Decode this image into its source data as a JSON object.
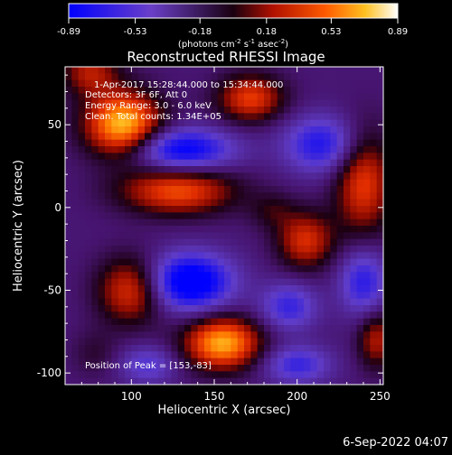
{
  "colorbar": {
    "tick_labels": [
      "-0.89",
      "-0.53",
      "-0.18",
      "0.18",
      "0.53",
      "0.89"
    ],
    "min": -0.89,
    "max": 0.89,
    "units_parts": {
      "a": "(photons cm",
      "b": "-2",
      "c": " s",
      "d": "-1",
      "e": " asec",
      "f": "-2",
      "g": ")"
    }
  },
  "chart_data": {
    "type": "heatmap",
    "title": "Reconstructed RHESSI Image",
    "xlabel": "Heliocentric X (arcsec)",
    "ylabel": "Heliocentric Y (arcsec)",
    "xlim": [
      60,
      252
    ],
    "ylim": [
      -107,
      85
    ],
    "x_ticks": [
      100,
      150,
      200,
      250
    ],
    "y_ticks": [
      50,
      0,
      -50,
      -100
    ],
    "x_tick_labels": [
      "100",
      "150",
      "200",
      "250"
    ],
    "y_tick_labels": [
      "50",
      "0",
      "-50",
      "-100"
    ],
    "annotations": [
      "1-Apr-2017 15:28:44.000 to 15:34:44.000",
      "Detectors: 3F 6F, Att 0",
      "Energy Range: 3.0 - 6.0 keV",
      "Clean. Total counts: 1.34E+05"
    ],
    "peak_label": "Position of Peak = [153,-83]",
    "peak_position": [
      153,
      -83
    ],
    "blobs": [
      {
        "x": 95,
        "y": 50,
        "amp": 0.95,
        "sx": 16,
        "sy": 14
      },
      {
        "x": 75,
        "y": 82,
        "amp": 0.45,
        "sx": 12,
        "sy": 10
      },
      {
        "x": 128,
        "y": 10,
        "amp": 0.65,
        "sx": 24,
        "sy": 10
      },
      {
        "x": 172,
        "y": 66,
        "amp": 0.6,
        "sx": 14,
        "sy": 10
      },
      {
        "x": 155,
        "y": -82,
        "amp": 0.89,
        "sx": 16,
        "sy": 11
      },
      {
        "x": 100,
        "y": -50,
        "amp": 0.6,
        "sx": 14,
        "sy": 14
      },
      {
        "x": 205,
        "y": -20,
        "amp": 0.55,
        "sx": 12,
        "sy": 12
      },
      {
        "x": 240,
        "y": 15,
        "amp": 0.6,
        "sx": 12,
        "sy": 22
      },
      {
        "x": 185,
        "y": -2,
        "amp": 0.2,
        "sx": 10,
        "sy": 8
      },
      {
        "x": 248,
        "y": -80,
        "amp": 0.45,
        "sx": 8,
        "sy": 12
      },
      {
        "x": 78,
        "y": -88,
        "amp": 0.15,
        "sx": 10,
        "sy": 10
      },
      {
        "x": 130,
        "y": 35,
        "amp": -0.7,
        "sx": 22,
        "sy": 9
      },
      {
        "x": 135,
        "y": -45,
        "amp": -0.85,
        "sx": 18,
        "sy": 12
      },
      {
        "x": 215,
        "y": 38,
        "amp": -0.55,
        "sx": 16,
        "sy": 12
      },
      {
        "x": 240,
        "y": -45,
        "amp": -0.5,
        "sx": 10,
        "sy": 14
      },
      {
        "x": 195,
        "y": -60,
        "amp": -0.45,
        "sx": 12,
        "sy": 10
      },
      {
        "x": 110,
        "y": -95,
        "amp": -0.35,
        "sx": 12,
        "sy": 8
      },
      {
        "x": 200,
        "y": -95,
        "amp": -0.45,
        "sx": 14,
        "sy": 8
      }
    ]
  },
  "footer": {
    "date": "6-Sep-2022 04:07"
  }
}
